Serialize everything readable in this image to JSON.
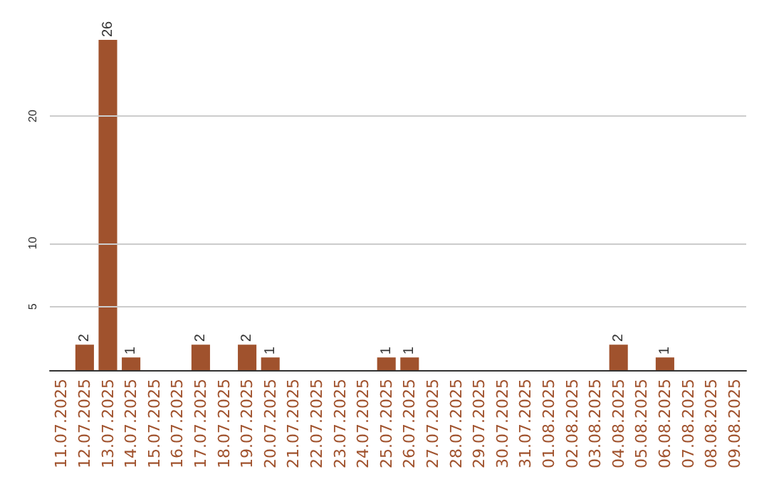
{
  "chart_data": {
    "type": "bar",
    "categories": [
      "11.07.2025",
      "12.07.2025",
      "13.07.2025",
      "14.07.2025",
      "15.07.2025",
      "16.07.2025",
      "17.07.2025",
      "18.07.2025",
      "19.07.2025",
      "20.07.2025",
      "21.07.2025",
      "22.07.2025",
      "23.07.2025",
      "24.07.2025",
      "25.07.2025",
      "26.07.2025",
      "27.07.2025",
      "28.07.2025",
      "29.07.2025",
      "30.07.2025",
      "31.07.2025",
      "01.08.2025",
      "02.08.2025",
      "03.08.2025",
      "04.08.2025",
      "05.08.2025",
      "06.08.2025",
      "07.08.2025",
      "08.08.2025",
      "09.08.2025"
    ],
    "values": [
      0,
      2,
      26,
      1,
      0,
      0,
      2,
      0,
      2,
      1,
      0,
      0,
      0,
      0,
      1,
      1,
      0,
      0,
      0,
      0,
      0,
      0,
      0,
      0,
      2,
      0,
      1,
      0,
      0,
      0
    ],
    "value_labels": [
      null,
      "2",
      "26",
      "1",
      null,
      null,
      "2",
      null,
      "2",
      "1",
      null,
      null,
      null,
      null,
      "1",
      "1",
      null,
      null,
      null,
      null,
      null,
      null,
      null,
      null,
      "2",
      null,
      "1",
      null,
      null,
      null
    ],
    "color": "#a0522d",
    "ylim": [
      0,
      26
    ],
    "yticks": [
      5,
      10,
      20
    ],
    "grid": "y"
  }
}
